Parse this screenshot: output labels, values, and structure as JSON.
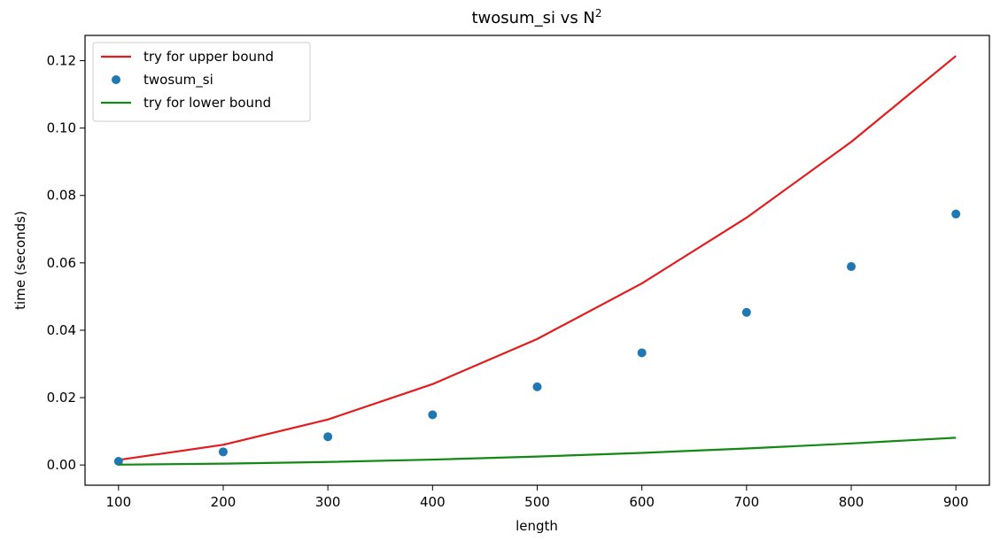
{
  "chart_data": {
    "type": "line",
    "title": "twosum_si vs N",
    "title_superscript": "2",
    "xlabel": "length",
    "ylabel": "time (seconds)",
    "xlim": [
      68,
      932
    ],
    "ylim": [
      -0.006,
      0.1275
    ],
    "x_ticks": [
      100,
      200,
      300,
      400,
      500,
      600,
      700,
      800,
      900
    ],
    "y_ticks": [
      0.0,
      0.02,
      0.04,
      0.06,
      0.08,
      0.1,
      0.12
    ],
    "y_tick_labels": [
      "0.00",
      "0.02",
      "0.04",
      "0.06",
      "0.08",
      "0.10",
      "0.12"
    ],
    "grid": false,
    "legend_position": "top-left",
    "x": [
      100,
      200,
      300,
      400,
      500,
      600,
      700,
      800,
      900
    ],
    "series": [
      {
        "name": "try for upper bound",
        "kind": "line",
        "color": "#e41a1c",
        "values": [
          0.0015,
          0.006,
          0.0135,
          0.024,
          0.0374,
          0.0539,
          0.0734,
          0.0959,
          0.1214
        ]
      },
      {
        "name": "twosum_si",
        "kind": "scatter",
        "color": "#1f77b4",
        "values": [
          0.0011,
          0.0039,
          0.0084,
          0.0149,
          0.0232,
          0.0333,
          0.0453,
          0.0589,
          0.0745
        ]
      },
      {
        "name": "try for lower bound",
        "kind": "line",
        "color": "#138913",
        "values": [
          0.0001,
          0.0004,
          0.0009,
          0.0016,
          0.0025,
          0.0036,
          0.0049,
          0.0064,
          0.0081
        ]
      }
    ]
  }
}
